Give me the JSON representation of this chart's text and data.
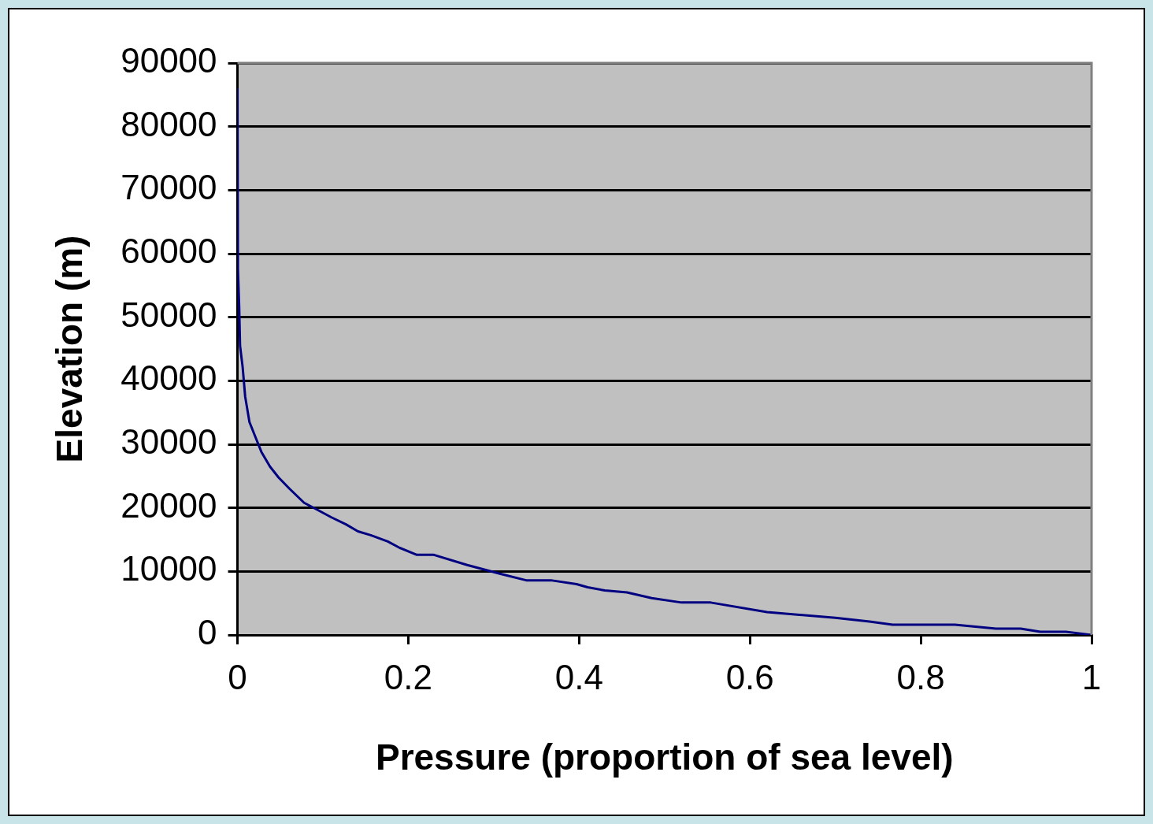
{
  "chart_data": {
    "type": "line",
    "xlabel": "Pressure (proportion of sea level)",
    "ylabel": "Elevation (m)",
    "xlim": [
      0,
      1
    ],
    "xticks": [
      0,
      0.2,
      0.4,
      0.6,
      0.8,
      1
    ],
    "ylim": [
      0,
      90000
    ],
    "yticks": [
      0,
      10000,
      20000,
      30000,
      40000,
      50000,
      60000,
      70000,
      80000,
      90000
    ],
    "grid": "y",
    "marker": "none",
    "line_style": "solid",
    "series": [
      {
        "color": "#000080",
        "x": [
          0,
          0.0005,
          0.002,
          0.003,
          0.006,
          0.009,
          0.014,
          0.022,
          0.028,
          0.038,
          0.048,
          0.061,
          0.078,
          0.092,
          0.11,
          0.127,
          0.141,
          0.156,
          0.176,
          0.19,
          0.21,
          0.23,
          0.269,
          0.308,
          0.338,
          0.367,
          0.397,
          0.41,
          0.43,
          0.456,
          0.485,
          0.52,
          0.554,
          0.62,
          0.7,
          0.74,
          0.767,
          0.84,
          0.888,
          0.917,
          0.94,
          0.97,
          1
        ],
        "values": [
          86000,
          57600,
          51600,
          45500,
          42200,
          37500,
          33500,
          30800,
          28800,
          26500,
          24800,
          23000,
          20800,
          19800,
          18500,
          17400,
          16300,
          15700,
          14700,
          13700,
          12600,
          12600,
          11000,
          9600,
          8600,
          8600,
          8000,
          7500,
          7000,
          6700,
          5800,
          5100,
          5100,
          3600,
          2700,
          2100,
          1600,
          1600,
          1000,
          1000,
          500,
          500,
          0
        ]
      }
    ]
  }
}
